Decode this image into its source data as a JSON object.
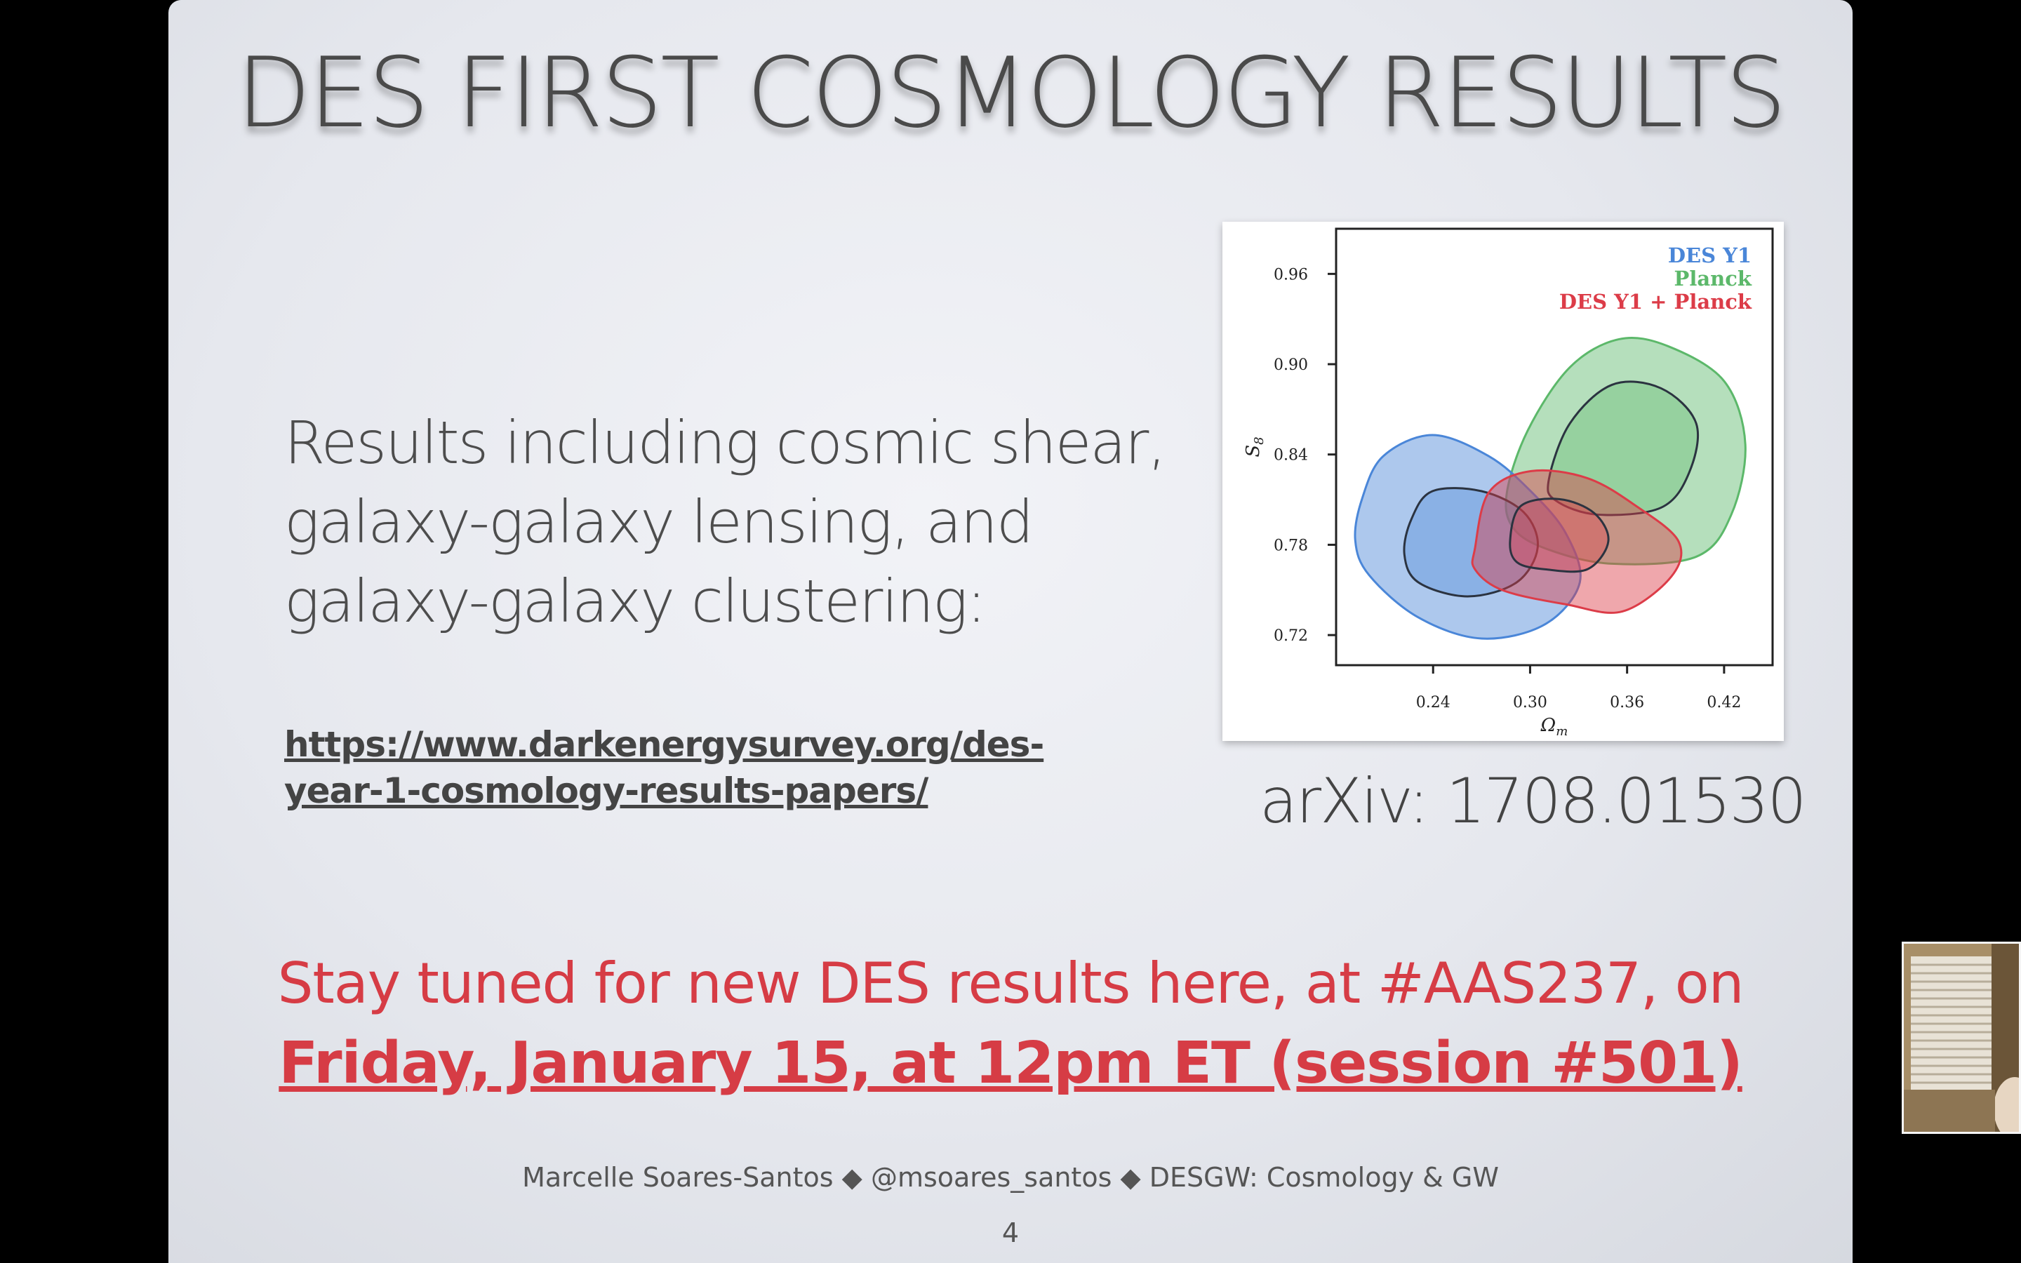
{
  "slide": {
    "title": "DES FIRST COSMOLOGY RESULTS",
    "body_lines": [
      "Results including cosmic shear,",
      "galaxy-galaxy lensing, and",
      "galaxy-galaxy clustering:"
    ],
    "link_lines": [
      "https://www.darkenergysurvey.org/des-",
      "year-1-cosmology-results-papers/"
    ],
    "arxiv": "arXiv: 1708.01530",
    "announcement_line1": "Stay tuned for new DES results here, at #AAS237, on",
    "announcement_line2": "Friday, January 15, at 12pm ET (session #501)",
    "footer": "Marcelle Soares-Santos ◆ @msoares_santos ◆ DESGW: Cosmology & GW",
    "page_number": "4"
  },
  "colors": {
    "accent_red": "#d63c45",
    "des_blue": "#4a86d8",
    "planck_green": "#5cb86a",
    "combined_red": "#dc3c48"
  },
  "chart_data": {
    "type": "contour",
    "xlabel": "Ω_m",
    "ylabel": "S_8",
    "xlim": [
      0.18,
      0.45
    ],
    "ylim": [
      0.7,
      0.99
    ],
    "xticks": [
      "0.24",
      "0.30",
      "0.36",
      "0.42"
    ],
    "yticks": [
      "0.72",
      "0.78",
      "0.84",
      "0.90",
      "0.96"
    ],
    "legend_position": "top-right",
    "series": [
      {
        "name": "DES Y1",
        "color": "#4a86d8",
        "center": [
          0.283,
          0.783
        ]
      },
      {
        "name": "Planck",
        "color": "#5cb86a",
        "center": [
          0.355,
          0.842
        ]
      },
      {
        "name": "DES Y1 + Planck",
        "color": "#dc3c48",
        "center": [
          0.318,
          0.787
        ]
      }
    ]
  }
}
